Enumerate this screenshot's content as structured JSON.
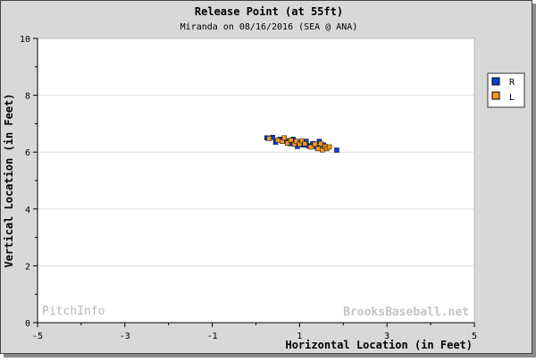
{
  "chart_data": {
    "type": "scatter",
    "title": "Release Point (at 55ft)",
    "subtitle": "Miranda on 08/16/2016 (SEA @ ANA)",
    "xlabel": "Horizontal Location (in Feet)",
    "ylabel": "Vertical Location (in Feet)",
    "xlim": [
      -5,
      5
    ],
    "ylim": [
      0,
      10
    ],
    "x_ticks": [
      "-5",
      "-3",
      "-1",
      "1",
      "3",
      "5"
    ],
    "y_ticks": [
      "0",
      "2",
      "4",
      "6",
      "8",
      "10"
    ],
    "grid": "horizontal",
    "legend_position": "right",
    "series": [
      {
        "name": "R",
        "color": "#0a3fd6",
        "points": [
          [
            0.25,
            6.5
          ],
          [
            0.38,
            6.52
          ],
          [
            0.45,
            6.35
          ],
          [
            0.55,
            6.45
          ],
          [
            0.68,
            6.4
          ],
          [
            0.78,
            6.3
          ],
          [
            0.85,
            6.45
          ],
          [
            0.95,
            6.2
          ],
          [
            1.0,
            6.35
          ],
          [
            1.08,
            6.25
          ],
          [
            1.15,
            6.38
          ],
          [
            1.2,
            6.22
          ],
          [
            1.3,
            6.3
          ],
          [
            1.38,
            6.18
          ],
          [
            1.45,
            6.38
          ],
          [
            1.55,
            6.25
          ],
          [
            1.62,
            6.15
          ],
          [
            1.85,
            6.07
          ]
        ]
      },
      {
        "name": "L",
        "color": "#f39a1f",
        "points": [
          [
            0.3,
            6.48
          ],
          [
            0.5,
            6.42
          ],
          [
            0.6,
            6.38
          ],
          [
            0.65,
            6.5
          ],
          [
            0.72,
            6.32
          ],
          [
            0.8,
            6.42
          ],
          [
            0.88,
            6.28
          ],
          [
            0.92,
            6.38
          ],
          [
            1.0,
            6.28
          ],
          [
            1.05,
            6.4
          ],
          [
            1.12,
            6.3
          ],
          [
            1.25,
            6.18
          ],
          [
            1.35,
            6.28
          ],
          [
            1.42,
            6.12
          ],
          [
            1.48,
            6.3
          ],
          [
            1.52,
            6.08
          ],
          [
            1.58,
            6.2
          ],
          [
            1.62,
            6.12
          ],
          [
            1.68,
            6.18
          ]
        ]
      }
    ]
  },
  "watermark_left": "PitchInfo",
  "watermark_right": "BrooksBaseball.net",
  "colors": {
    "frame_bg": "#d8d8d8",
    "plot_bg": "#ffffff",
    "grid": "#dddddd"
  }
}
